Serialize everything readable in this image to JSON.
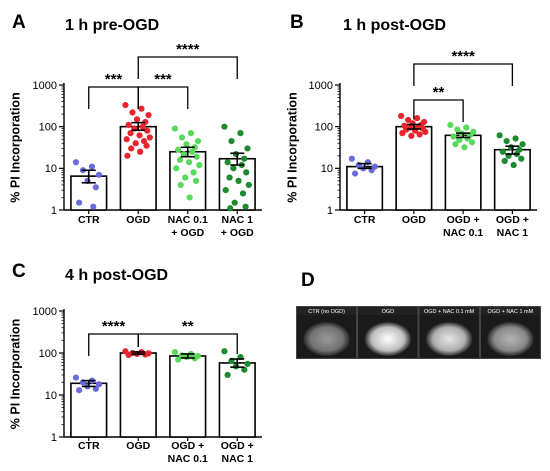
{
  "chart_data": [
    {
      "type": "bar",
      "panel": "A",
      "title": "1 h pre-OGD",
      "ylabel": "% PI Incorporation",
      "yscale": "log",
      "ylim": [
        1,
        1000
      ],
      "yticks": [
        "1",
        "10",
        "100",
        "1000"
      ],
      "categories": [
        [
          "CTR"
        ],
        [
          "OGD"
        ],
        [
          "NAC 0.1",
          "+ OGD"
        ],
        [
          "NAC 1",
          "+ OGD"
        ]
      ],
      "values": [
        6.5,
        100,
        25,
        17
      ],
      "sem": [
        [
          4.5,
          9
        ],
        [
          82,
          125
        ],
        [
          19,
          32
        ],
        [
          12,
          23
        ]
      ],
      "colors": [
        "#6a6cdc",
        "#e8242c",
        "#59d95a",
        "#1c8a2e"
      ],
      "points": [
        [
          14,
          11,
          9,
          7,
          5,
          3.5,
          1.5,
          1.2
        ],
        [
          330,
          270,
          220,
          190,
          150,
          130,
          110,
          100,
          90,
          80,
          70,
          62,
          55,
          50,
          45,
          40,
          35,
          30,
          25,
          20
        ],
        [
          90,
          70,
          55,
          45,
          38,
          32,
          28,
          25,
          22,
          19,
          16,
          14,
          12,
          10,
          8,
          6,
          5,
          4,
          2
        ],
        [
          100,
          70,
          45,
          30,
          22,
          17,
          14,
          12,
          10,
          8,
          6,
          5,
          4,
          3,
          2.5,
          1.5,
          1.2,
          1.1
        ]
      ],
      "comparisons": [
        {
          "from": 0,
          "to": 1,
          "label": "***"
        },
        {
          "from": 1,
          "to": 2,
          "label": "***"
        },
        {
          "from": 1,
          "to": 3,
          "label": "****"
        }
      ]
    },
    {
      "type": "bar",
      "panel": "B",
      "title": "1 h post-OGD",
      "ylabel": "% PI Incorporation",
      "yscale": "log",
      "ylim": [
        1,
        1000
      ],
      "yticks": [
        "1",
        "10",
        "100",
        "1000"
      ],
      "categories": [
        [
          "CTR"
        ],
        [
          "OGD"
        ],
        [
          "OGD +",
          "NAC 0.1"
        ],
        [
          "OGD +",
          "NAC 1"
        ]
      ],
      "values": [
        11,
        100,
        62,
        28
      ],
      "sem": [
        [
          10,
          13
        ],
        [
          88,
          113
        ],
        [
          55,
          70
        ],
        [
          22,
          34
        ]
      ],
      "colors": [
        "#6a6cdc",
        "#e8242c",
        "#59d95a",
        "#1c8a2e"
      ],
      "points": [
        [
          17,
          14,
          12,
          11,
          10,
          9,
          7.5
        ],
        [
          180,
          160,
          145,
          130,
          120,
          110,
          105,
          100,
          95,
          90,
          85,
          80,
          75,
          70,
          65,
          60
        ],
        [
          110,
          95,
          85,
          75,
          68,
          62,
          58,
          52,
          48,
          42,
          38,
          32
        ],
        [
          62,
          52,
          45,
          38,
          32,
          28,
          25,
          22,
          20,
          17,
          15,
          12
        ]
      ],
      "comparisons": [
        {
          "from": 1,
          "to": 2,
          "label": "**"
        },
        {
          "from": 1,
          "to": 3,
          "label": "****"
        }
      ]
    },
    {
      "type": "bar",
      "panel": "C",
      "title": "4 h post-OGD",
      "ylabel": "% PI Incorporation",
      "yscale": "log",
      "ylim": [
        1,
        1000
      ],
      "yticks": [
        "1",
        "10",
        "100",
        "1000"
      ],
      "categories": [
        [
          "CTR"
        ],
        [
          "OGD"
        ],
        [
          "OGD +",
          "NAC 0.1"
        ],
        [
          "OGD +",
          "NAC 1"
        ]
      ],
      "values": [
        19,
        100,
        85,
        58
      ],
      "sem": [
        [
          16,
          22
        ],
        [
          94,
          106
        ],
        [
          76,
          95
        ],
        [
          46,
          72
        ]
      ],
      "colors": [
        "#6a6cdc",
        "#e8242c",
        "#59d95a",
        "#1c8a2e"
      ],
      "points": [
        [
          26,
          22,
          20,
          18,
          16,
          14,
          13
        ],
        [
          110,
          105,
          100,
          98,
          95,
          92,
          90
        ],
        [
          105,
          95,
          88,
          85,
          80,
          75,
          70
        ],
        [
          110,
          80,
          65,
          55,
          48,
          40,
          30
        ]
      ],
      "comparisons": [
        {
          "from": 0,
          "to": 1,
          "label": "****"
        },
        {
          "from": 1,
          "to": 3,
          "label": "**"
        }
      ]
    }
  ],
  "panel_d": {
    "letter": "D",
    "images": [
      {
        "label": "CTR (no OGD)",
        "brightness": 0.38
      },
      {
        "label": "OGD",
        "brightness": 1.0
      },
      {
        "label": "OGD + NAC 0.1 mM",
        "brightness": 0.85
      },
      {
        "label": "OGD + NAC 1 mM",
        "brightness": 0.55
      }
    ]
  }
}
